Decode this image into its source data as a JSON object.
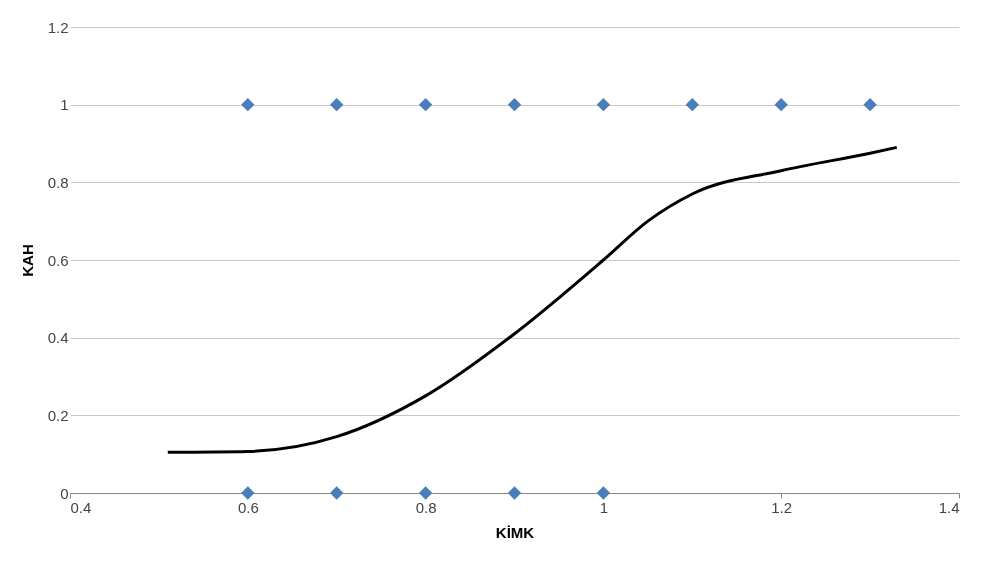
{
  "chart_data": {
    "type": "scatter",
    "xlabel": "KİMK",
    "ylabel": "KAH",
    "xlim": [
      0.4,
      1.4
    ],
    "xticks": [
      0.4,
      0.6,
      0.8,
      1,
      1.2,
      1.4
    ],
    "ylim": [
      0,
      1.2
    ],
    "yticks": [
      0,
      0.2,
      0.4,
      0.6,
      0.8,
      1,
      1.2
    ],
    "grid": "y",
    "marker": "diamond",
    "series": [
      {
        "color": "#4a7ebb",
        "x": [
          0.6,
          0.7,
          0.8,
          0.9,
          1.0,
          1.1,
          1.2,
          1.3,
          0.6,
          0.7,
          0.8,
          0.9,
          1.0
        ],
        "values": [
          1,
          1,
          1,
          1,
          1,
          1,
          1,
          1,
          0,
          0,
          0,
          0,
          0
        ]
      },
      {
        "type": "line",
        "color": "#000000",
        "marker": "none",
        "line_style": "solid",
        "x": [
          0.51,
          0.6,
          0.7,
          0.8,
          0.9,
          1.0,
          1.05,
          1.1,
          1.2,
          1.3,
          1.33
        ],
        "values": [
          0.105,
          0.107,
          0.145,
          0.25,
          0.41,
          0.6,
          0.7,
          0.77,
          0.83,
          0.875,
          0.89
        ]
      }
    ]
  }
}
